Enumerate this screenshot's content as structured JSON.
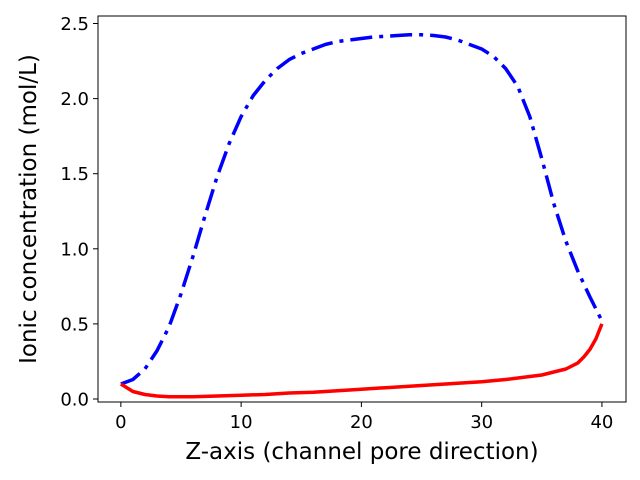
{
  "chart_data": {
    "type": "line",
    "title": "",
    "xlabel": "Z-axis (channel pore direction)",
    "ylabel": "Ionic concentration (mol/L)",
    "xlim": [
      -1.9,
      42.0
    ],
    "ylim": [
      -0.02,
      2.55
    ],
    "grid": false,
    "legend": "none",
    "x_ticks": [
      0,
      10,
      20,
      30,
      40
    ],
    "x_tick_labels": [
      "0",
      "10",
      "20",
      "30",
      "40"
    ],
    "y_ticks": [
      0.0,
      0.5,
      1.0,
      1.5,
      2.0,
      2.5
    ],
    "y_tick_labels": [
      "0.0",
      "0.5",
      "1.0",
      "1.5",
      "2.0",
      "2.5"
    ],
    "series": [
      {
        "color": "#0000ff",
        "linestyle": "dashdot",
        "x": [
          0,
          1,
          2,
          3,
          4,
          5,
          6,
          7,
          8,
          9,
          10,
          11,
          12,
          13,
          14,
          15,
          16,
          17,
          18,
          19,
          20,
          21,
          22,
          23,
          24,
          25,
          26,
          27,
          28,
          29,
          30,
          31,
          32,
          33,
          34,
          35,
          36,
          37,
          38,
          39,
          40
        ],
        "y": [
          0.1,
          0.13,
          0.2,
          0.32,
          0.48,
          0.7,
          0.95,
          1.22,
          1.48,
          1.7,
          1.88,
          2.02,
          2.12,
          2.2,
          2.26,
          2.3,
          2.33,
          2.36,
          2.38,
          2.39,
          2.4,
          2.41,
          2.415,
          2.42,
          2.425,
          2.425,
          2.42,
          2.41,
          2.39,
          2.36,
          2.33,
          2.28,
          2.2,
          2.08,
          1.88,
          1.6,
          1.3,
          1.05,
          0.85,
          0.68,
          0.52
        ]
      },
      {
        "color": "#ff0000",
        "linestyle": "solid",
        "x": [
          0,
          1,
          2,
          3,
          4,
          5,
          6,
          8,
          10,
          12,
          14,
          16,
          18,
          20,
          22,
          24,
          26,
          28,
          30,
          32,
          34,
          35,
          36,
          37,
          38,
          38.5,
          39,
          39.5,
          40
        ],
        "y": [
          0.1,
          0.05,
          0.03,
          0.02,
          0.015,
          0.015,
          0.015,
          0.02,
          0.025,
          0.03,
          0.04,
          0.045,
          0.055,
          0.065,
          0.075,
          0.085,
          0.095,
          0.105,
          0.115,
          0.13,
          0.15,
          0.16,
          0.18,
          0.2,
          0.24,
          0.28,
          0.33,
          0.4,
          0.5
        ]
      }
    ]
  }
}
